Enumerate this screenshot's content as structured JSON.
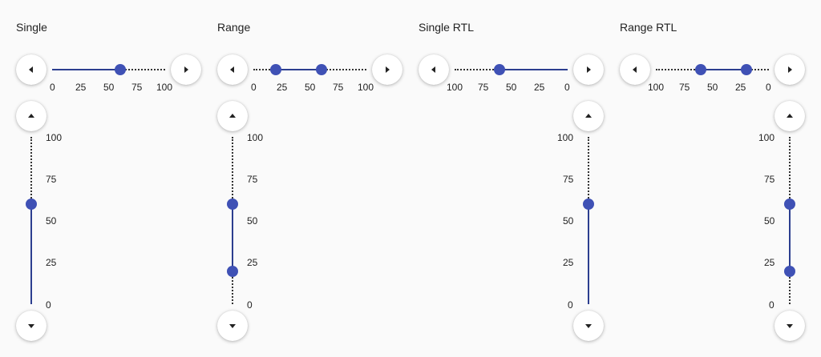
{
  "panels": [
    {
      "title": "Single",
      "h_ticks": [
        "0",
        "25",
        "50",
        "75",
        "100"
      ],
      "v_ticks": [
        "100",
        "75",
        "50",
        "25",
        "0"
      ],
      "h_value": [
        60
      ],
      "v_value": [
        60
      ],
      "rtl": false
    },
    {
      "title": "Range",
      "h_ticks": [
        "0",
        "25",
        "50",
        "75",
        "100"
      ],
      "v_ticks": [
        "100",
        "75",
        "50",
        "25",
        "0"
      ],
      "h_value": [
        20,
        60
      ],
      "v_value": [
        20,
        60
      ],
      "rtl": false
    },
    {
      "title": "Single RTL",
      "h_ticks": [
        "100",
        "75",
        "50",
        "25",
        "0"
      ],
      "v_ticks": [
        "100",
        "75",
        "50",
        "25",
        "0"
      ],
      "h_value": [
        60
      ],
      "v_value": [
        60
      ],
      "rtl": true
    },
    {
      "title": "Range RTL",
      "h_ticks": [
        "100",
        "75",
        "50",
        "25",
        "0"
      ],
      "v_ticks": [
        "100",
        "75",
        "50",
        "25",
        "0"
      ],
      "h_value": [
        20,
        60
      ],
      "v_value": [
        20,
        60
      ],
      "rtl": true
    }
  ],
  "icons": {
    "left": "arrow-left-icon",
    "right": "arrow-right-icon",
    "up": "arrow-up-icon",
    "down": "arrow-down-icon"
  },
  "colors": {
    "thumb": "#3f51b5",
    "active_track": "#2c3e8f"
  }
}
